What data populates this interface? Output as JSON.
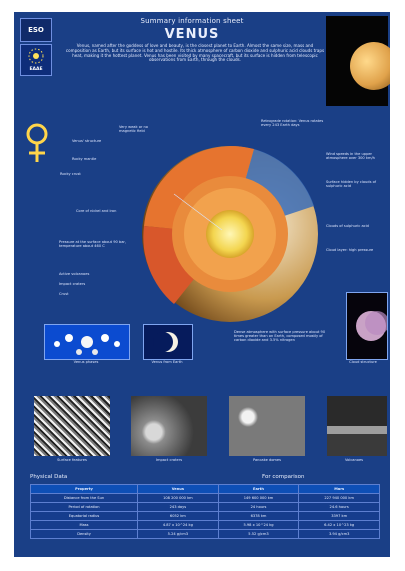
{
  "header": {
    "subtitle": "Summary information sheet",
    "title": "VENUS",
    "intro": "Venus, named after the goddess of love and beauty, is the closest planet to Earth. Almost the same size, mass and composition as Earth, but its surface is hot and hostile. Its thick atmosphere of carbon dioxide and sulphuric acid clouds traps heat, making it the hottest planet. Venus has been visited by many spacecraft, but its surface is hidden from telescopic observations from Earth, through the clouds."
  },
  "logos": {
    "eso": "ESO",
    "eaae": "EAAE"
  },
  "planet_labels": {
    "left": [
      "Venus' structure",
      "Rocky mantle",
      "Rocky crust",
      "Core of nickel and iron",
      "Very weak or no magnetic field",
      "Pressure at the surface about 90 bar, temperature about 460 C",
      "Active volcanoes",
      "Impact craters",
      "Crust"
    ],
    "right": [
      "Retrograde rotation: Venus rotates every 243 Earth days",
      "Wind speeds in the upper atmosphere over 300 km/h",
      "Surface hidden by clouds of sulphuric acid",
      "Clouds of sulphuric acid",
      "Cloud layer: high pressure"
    ],
    "bottom": "Dense atmosphere with surface pressure about 90 times greater than on Earth, composed mostly of carbon dioxide and 3.5% nitrogen"
  },
  "small_panels": [
    {
      "label": "Venus phases"
    },
    {
      "label": "Venus from Earth"
    },
    {
      "label": "Cloud structure"
    }
  ],
  "photos": [
    {
      "label": "Surface features"
    },
    {
      "label": "Impact craters"
    },
    {
      "label": "Pancake domes"
    },
    {
      "label": "Volcanoes"
    }
  ],
  "tables": {
    "physical_title": "Physical Data",
    "comparison_title": "For comparison",
    "headers": [
      "Property",
      "Venus",
      "Earth",
      "Mars"
    ],
    "rows": [
      [
        "Distance from the Sun",
        "108 200 000 km",
        "149 600 000 km",
        "227 940 000 km"
      ],
      [
        "Period of rotation",
        "243 days",
        "24 hours",
        "24.6 hours"
      ],
      [
        "Equatorial radius",
        "6052 km",
        "6378 km",
        "3397 km"
      ],
      [
        "Mass",
        "4.87 x 10^24 kg",
        "5.98 x 10^24 kg",
        "6.42 x 10^23 kg"
      ],
      [
        "Density",
        "5.24 g/cm3",
        "5.52 g/cm3",
        "3.94 g/cm3"
      ]
    ]
  },
  "colors": {
    "background": "#1a3f86",
    "accent": "#0b3e9d"
  }
}
